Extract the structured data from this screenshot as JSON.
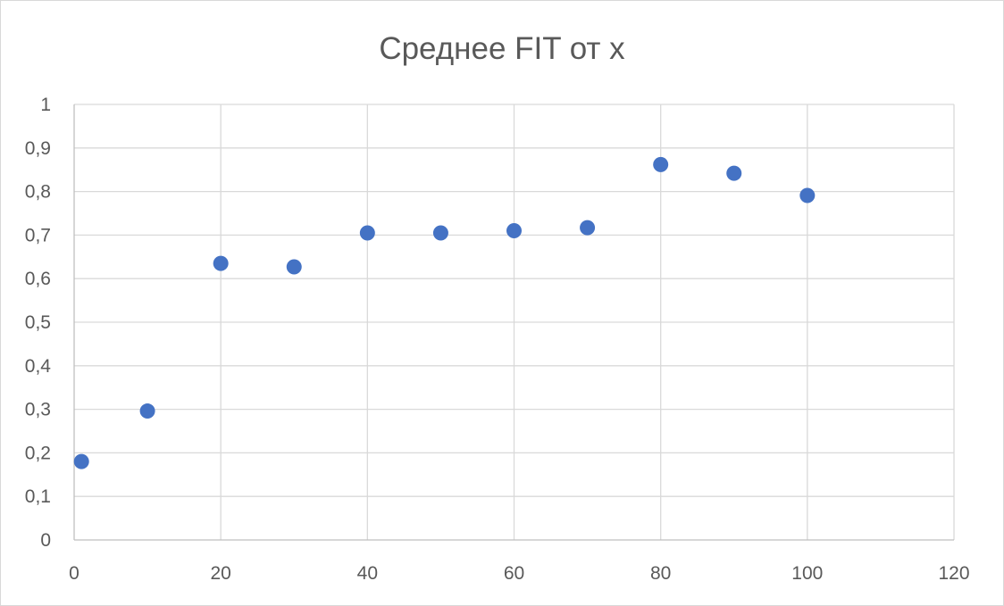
{
  "chart_data": {
    "type": "scatter",
    "title": "Среднее FIT от x",
    "xlabel": "",
    "ylabel": "",
    "xlim": [
      0,
      120
    ],
    "ylim": [
      0,
      1
    ],
    "grid": true,
    "legend": "none",
    "x_ticks": [
      "0",
      "20",
      "40",
      "60",
      "80",
      "100",
      "120"
    ],
    "x_tick_values": [
      0,
      20,
      40,
      60,
      80,
      100,
      120
    ],
    "y_ticks": [
      "0",
      "0,1",
      "0,2",
      "0,3",
      "0,4",
      "0,5",
      "0,6",
      "0,7",
      "0,8",
      "0,9",
      "1"
    ],
    "y_tick_values": [
      0,
      0.1,
      0.2,
      0.3,
      0.4,
      0.5,
      0.6,
      0.7,
      0.8,
      0.9,
      1
    ],
    "series": [
      {
        "color": "#4472c4",
        "points": [
          {
            "x": 1,
            "y": 0.18
          },
          {
            "x": 10,
            "y": 0.296
          },
          {
            "x": 20,
            "y": 0.635
          },
          {
            "x": 30,
            "y": 0.627
          },
          {
            "x": 40,
            "y": 0.705
          },
          {
            "x": 50,
            "y": 0.705
          },
          {
            "x": 60,
            "y": 0.71
          },
          {
            "x": 70,
            "y": 0.717
          },
          {
            "x": 80,
            "y": 0.862
          },
          {
            "x": 90,
            "y": 0.842
          },
          {
            "x": 100,
            "y": 0.791
          }
        ]
      }
    ]
  }
}
